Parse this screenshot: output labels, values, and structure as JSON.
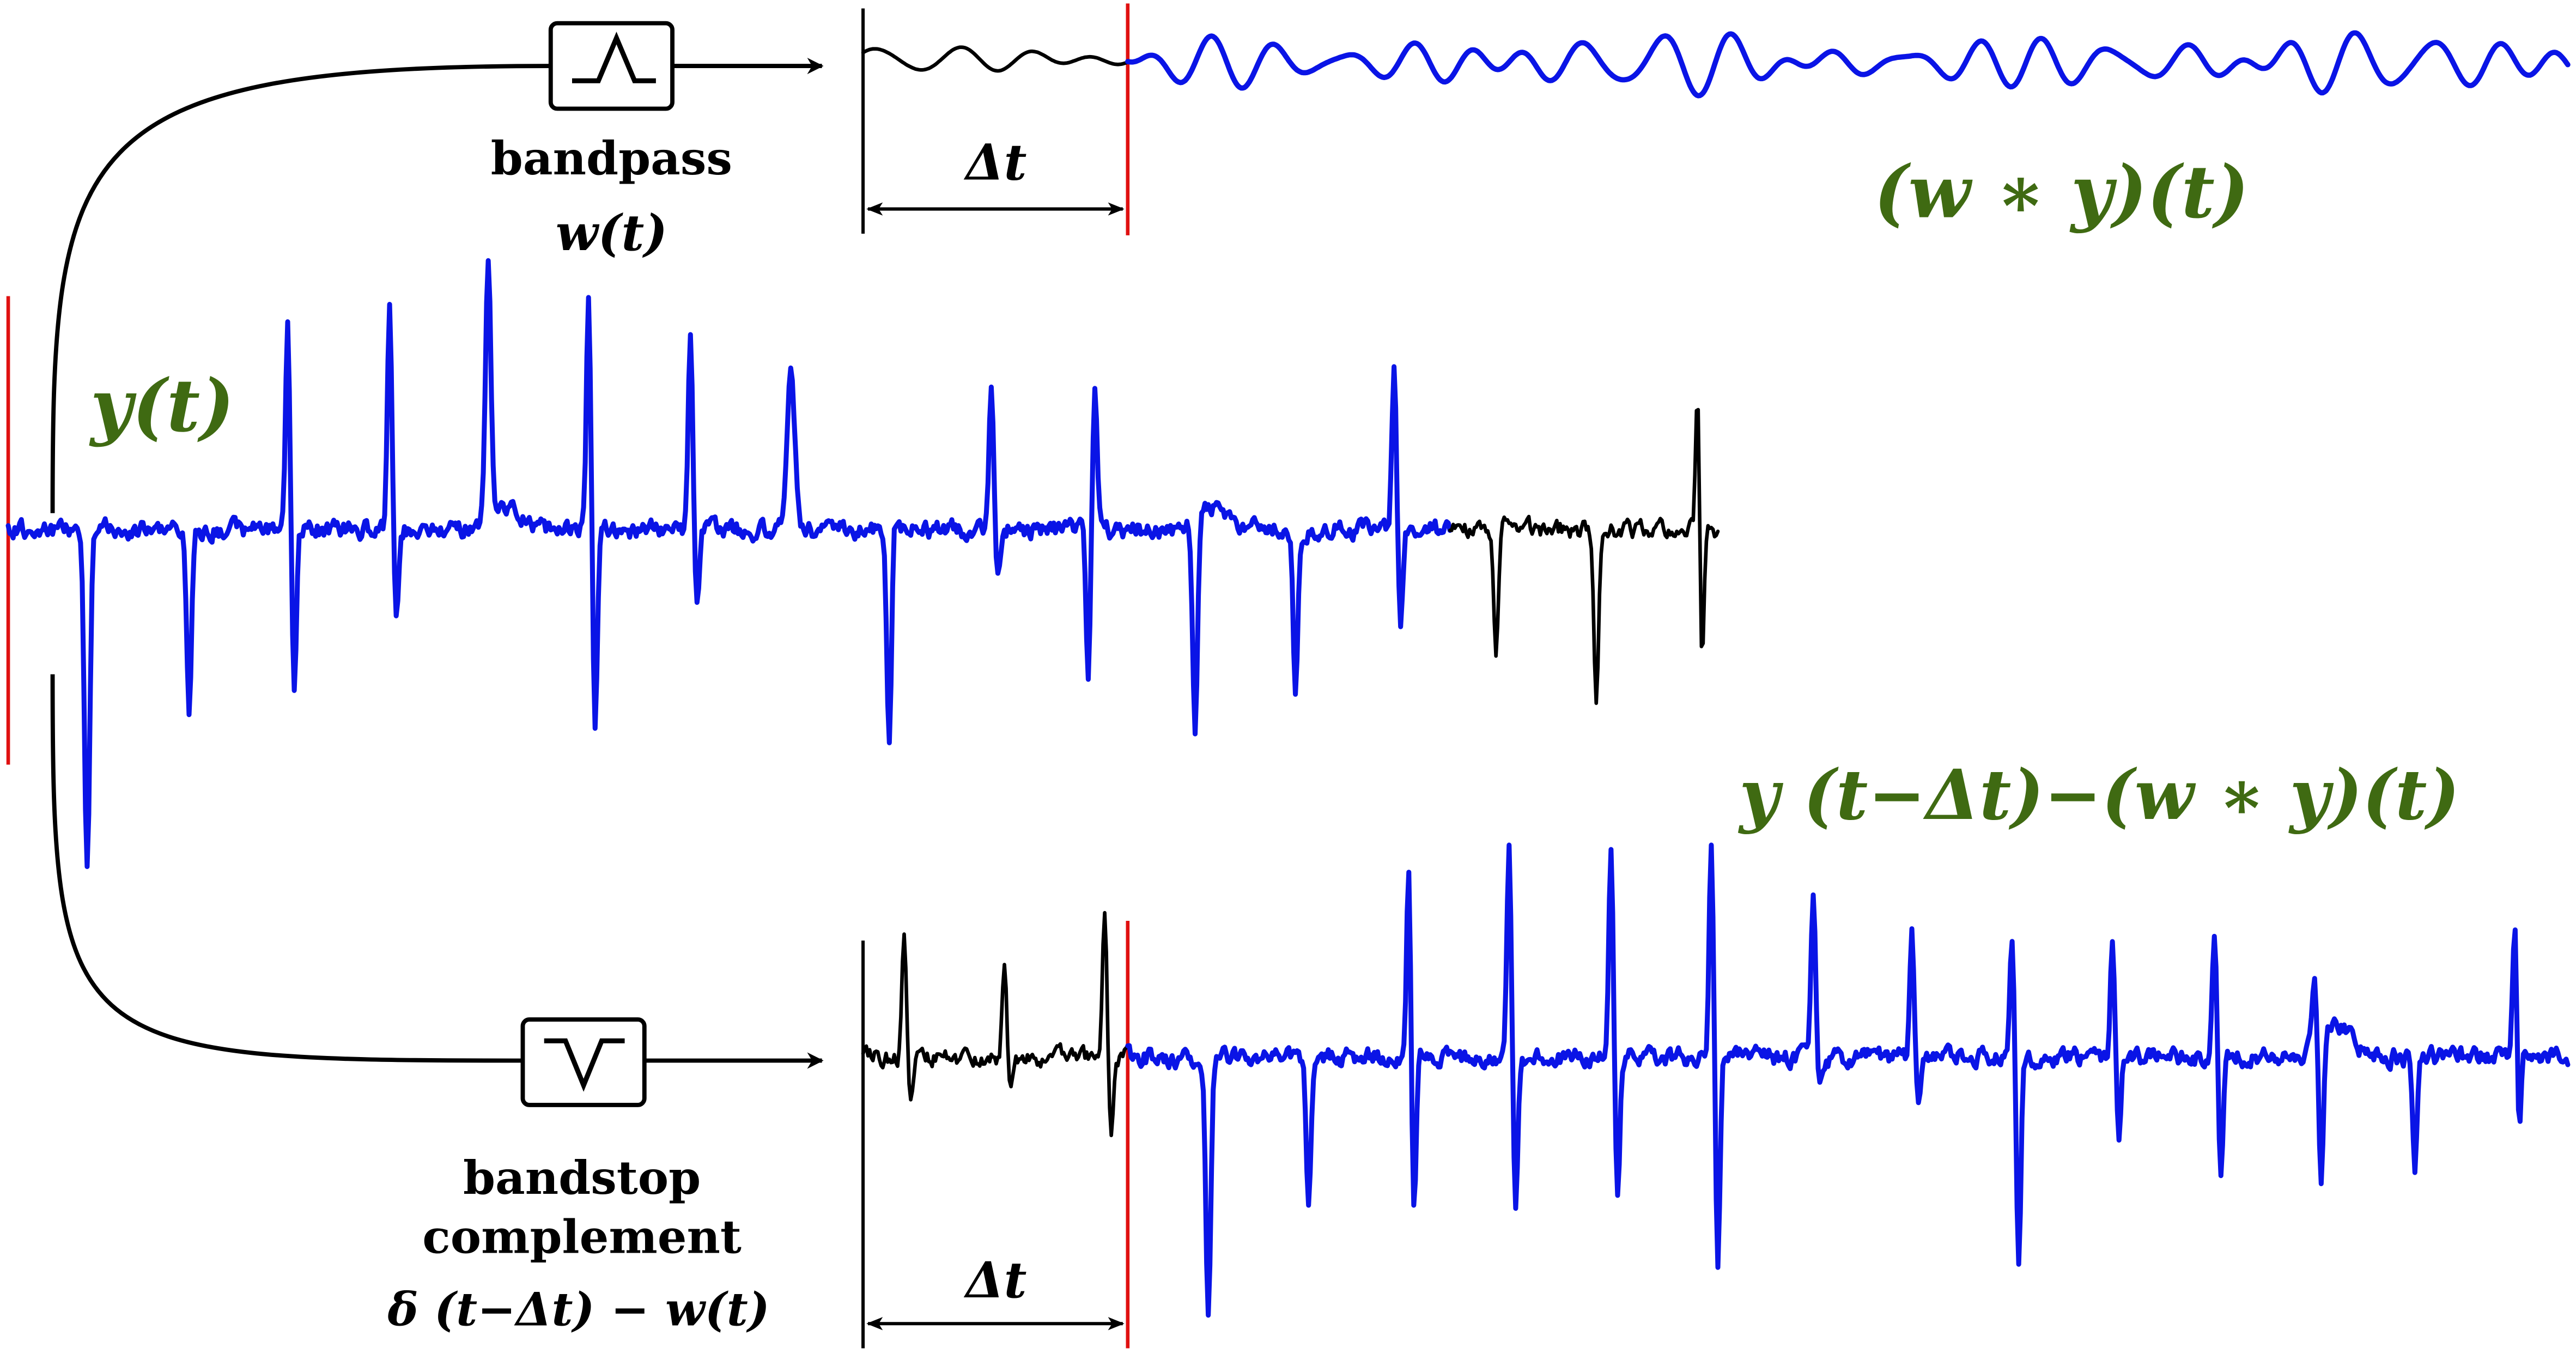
{
  "colors": {
    "signal": "#0a14e6",
    "history": "#000000",
    "marker": "#e01010",
    "label": "#3f6a12",
    "ink": "#000000"
  },
  "labels": {
    "input": "y(t)",
    "bandpass_out": "(w ∗ y)(t)",
    "bandstop_out": "y (t−Δt)−(w ∗ y)(t)",
    "bandpass_title": "bandpass",
    "bandpass_formula": "w(t)",
    "bandstop_title": "bandstop",
    "bandstop_subtitle": "complement",
    "bandstop_formula": "δ (t−Δt) − w(t)",
    "delay_top": "Δt",
    "delay_bottom": "Δt"
  },
  "icons": {
    "bandpass": "bandpass-filter-icon",
    "bandstop": "bandstop-filter-icon"
  }
}
